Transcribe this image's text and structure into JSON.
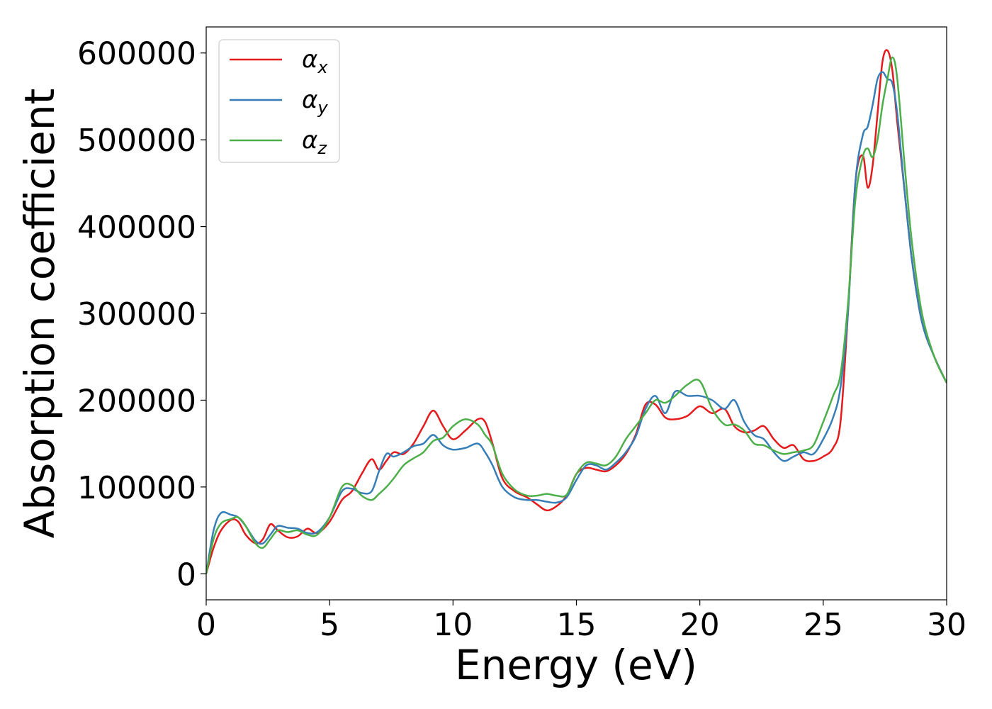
{
  "chart_data": {
    "type": "line",
    "xlabel": "Energy (eV)",
    "ylabel": "Absorption coefficient",
    "xlim": [
      0,
      30
    ],
    "ylim": [
      -30000,
      630000
    ],
    "xticks": [
      "0",
      "5",
      "10",
      "15",
      "20",
      "25",
      "30"
    ],
    "yticks": [
      "0",
      "100000",
      "200000",
      "300000",
      "400000",
      "500000",
      "600000"
    ],
    "grid": false,
    "legend_position": "top-left",
    "series": [
      {
        "name": "α",
        "subscript": "x",
        "color": "#e41a1c",
        "x": [
          0,
          0.3,
          0.6,
          1.0,
          1.3,
          1.6,
          2.0,
          2.3,
          2.6,
          2.9,
          3.3,
          3.7,
          4.1,
          4.5,
          5.0,
          5.5,
          5.9,
          6.3,
          6.7,
          7.0,
          7.3,
          7.6,
          8.0,
          8.4,
          8.8,
          9.2,
          9.6,
          10.0,
          10.5,
          11.0,
          11.3,
          11.6,
          12.0,
          12.5,
          13.0,
          13.4,
          13.8,
          14.2,
          14.6,
          15.0,
          15.4,
          15.8,
          16.2,
          16.6,
          17.0,
          17.4,
          17.8,
          18.2,
          18.6,
          19.0,
          19.5,
          20.0,
          20.5,
          21.0,
          21.4,
          21.8,
          22.2,
          22.6,
          23.0,
          23.4,
          23.8,
          24.2,
          24.6,
          25.0,
          25.4,
          25.7,
          26.0,
          26.3,
          26.6,
          26.8,
          27.0,
          27.2,
          27.4,
          27.6,
          27.8,
          28.0,
          28.3,
          28.6,
          29.0,
          29.5,
          30.0
        ],
        "y": [
          0,
          30000,
          50000,
          62000,
          60000,
          45000,
          35000,
          40000,
          57000,
          50000,
          42000,
          43000,
          52000,
          47000,
          60000,
          85000,
          95000,
          115000,
          132000,
          120000,
          130000,
          140000,
          138000,
          150000,
          170000,
          188000,
          170000,
          155000,
          165000,
          178000,
          175000,
          150000,
          110000,
          95000,
          88000,
          80000,
          73000,
          78000,
          90000,
          115000,
          122000,
          120000,
          118000,
          125000,
          138000,
          160000,
          195000,
          195000,
          180000,
          178000,
          182000,
          193000,
          185000,
          190000,
          170000,
          163000,
          165000,
          170000,
          155000,
          145000,
          148000,
          132000,
          130000,
          135000,
          145000,
          175000,
          300000,
          450000,
          482000,
          445000,
          470000,
          530000,
          590000,
          603000,
          580000,
          520000,
          440000,
          360000,
          290000,
          250000,
          220000
        ]
      },
      {
        "name": "α",
        "subscript": "y",
        "color": "#377eb8",
        "x": [
          0,
          0.3,
          0.6,
          1.0,
          1.3,
          1.6,
          2.0,
          2.3,
          2.6,
          2.9,
          3.3,
          3.7,
          4.1,
          4.5,
          5.0,
          5.5,
          5.9,
          6.3,
          6.7,
          7.0,
          7.3,
          7.6,
          8.0,
          8.4,
          8.8,
          9.2,
          9.6,
          10.0,
          10.5,
          11.0,
          11.3,
          11.6,
          12.0,
          12.5,
          13.0,
          13.4,
          13.8,
          14.2,
          14.6,
          15.0,
          15.4,
          15.8,
          16.2,
          16.6,
          17.0,
          17.4,
          17.8,
          18.2,
          18.6,
          19.0,
          19.5,
          20.0,
          20.5,
          21.0,
          21.4,
          21.8,
          22.2,
          22.6,
          23.0,
          23.4,
          23.8,
          24.2,
          24.6,
          25.0,
          25.4,
          25.7,
          26.0,
          26.3,
          26.6,
          26.8,
          27.0,
          27.2,
          27.4,
          27.6,
          27.8,
          28.0,
          28.3,
          28.6,
          29.0,
          29.5,
          30.0
        ],
        "y": [
          0,
          50000,
          70000,
          68000,
          65000,
          55000,
          38000,
          35000,
          45000,
          55000,
          53000,
          52000,
          47000,
          48000,
          65000,
          95000,
          98000,
          93000,
          95000,
          118000,
          138000,
          135000,
          140000,
          147000,
          150000,
          160000,
          148000,
          143000,
          145000,
          150000,
          140000,
          125000,
          100000,
          88000,
          85000,
          85000,
          83000,
          82000,
          88000,
          108000,
          125000,
          125000,
          120000,
          128000,
          140000,
          158000,
          190000,
          205000,
          185000,
          210000,
          205000,
          205000,
          200000,
          190000,
          200000,
          175000,
          160000,
          155000,
          140000,
          130000,
          135000,
          140000,
          138000,
          155000,
          180000,
          215000,
          300000,
          450000,
          505000,
          515000,
          540000,
          570000,
          578000,
          570000,
          565000,
          530000,
          440000,
          360000,
          290000,
          250000,
          220000
        ]
      },
      {
        "name": "α",
        "subscript": "z",
        "color": "#4daf4a",
        "x": [
          0,
          0.3,
          0.6,
          1.0,
          1.3,
          1.6,
          2.0,
          2.3,
          2.6,
          2.9,
          3.3,
          3.7,
          4.1,
          4.5,
          5.0,
          5.5,
          5.9,
          6.3,
          6.7,
          7.0,
          7.3,
          7.6,
          8.0,
          8.4,
          8.8,
          9.2,
          9.6,
          10.0,
          10.5,
          11.0,
          11.3,
          11.6,
          12.0,
          12.5,
          13.0,
          13.4,
          13.8,
          14.2,
          14.6,
          15.0,
          15.4,
          15.8,
          16.2,
          16.6,
          17.0,
          17.4,
          17.8,
          18.2,
          18.6,
          19.0,
          19.5,
          20.0,
          20.5,
          21.0,
          21.4,
          21.8,
          22.2,
          22.6,
          23.0,
          23.4,
          23.8,
          24.2,
          24.6,
          25.0,
          25.4,
          25.7,
          26.0,
          26.3,
          26.6,
          26.8,
          27.0,
          27.2,
          27.4,
          27.6,
          27.8,
          28.0,
          28.3,
          28.6,
          29.0,
          29.5,
          30.0
        ],
        "y": [
          0,
          40000,
          58000,
          63000,
          65000,
          55000,
          35000,
          30000,
          40000,
          50000,
          48000,
          50000,
          45000,
          45000,
          65000,
          100000,
          102000,
          90000,
          85000,
          92000,
          100000,
          110000,
          125000,
          133000,
          140000,
          153000,
          157000,
          170000,
          178000,
          172000,
          160000,
          148000,
          115000,
          97000,
          90000,
          90000,
          92000,
          90000,
          91000,
          115000,
          128000,
          127000,
          125000,
          135000,
          155000,
          170000,
          185000,
          200000,
          197000,
          205000,
          218000,
          222000,
          190000,
          172000,
          172000,
          165000,
          150000,
          148000,
          142000,
          138000,
          140000,
          142000,
          148000,
          175000,
          205000,
          230000,
          310000,
          430000,
          480000,
          490000,
          480000,
          500000,
          540000,
          570000,
          595000,
          570000,
          470000,
          380000,
          300000,
          250000,
          220000
        ]
      }
    ]
  }
}
